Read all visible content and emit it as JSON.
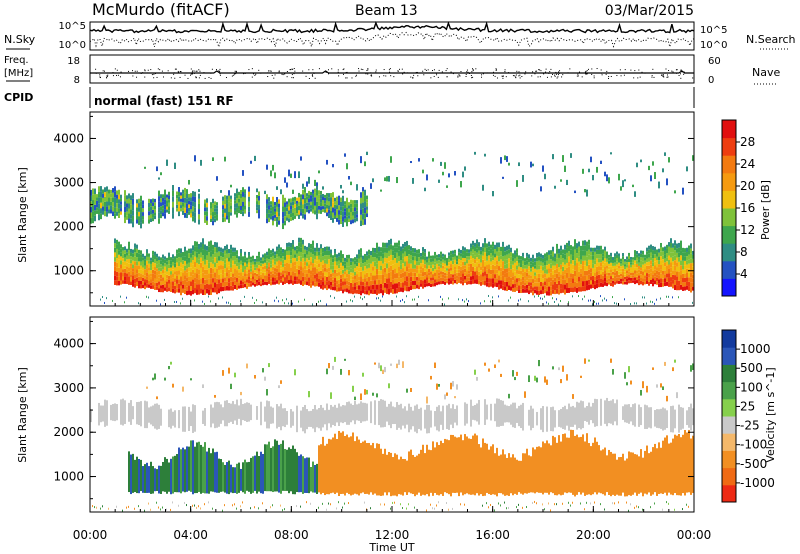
{
  "header": {
    "station": "McMurdo (fitACF)",
    "beam": "Beam 13",
    "date": "03/Mar/2015"
  },
  "noise_panel": {
    "left_label": "N.Sky",
    "right_label": "N.Search",
    "left_ticks": [
      "10^5",
      "10^0"
    ],
    "right_ticks": [
      "10^5",
      "10^0"
    ],
    "right_legend_line": "dotted"
  },
  "freq_panel": {
    "left_label_1": "Freq.",
    "left_label_2": "[MHz]",
    "left_ticks": [
      "18",
      "8"
    ],
    "right_label": "Nave",
    "right_ticks": [
      "60",
      "0"
    ],
    "right_legend_line": "dotted"
  },
  "cpid": {
    "label": "CPID",
    "mode": "normal (fast) 151 RF"
  },
  "x_axis": {
    "label": "Time UT",
    "ticks": [
      "00:00",
      "04:00",
      "08:00",
      "12:00",
      "16:00",
      "20:00",
      "00:00"
    ],
    "range_hours": [
      0,
      24
    ]
  },
  "colors": {
    "power": [
      "#1414ff",
      "#2452c2",
      "#2f8d83",
      "#3ea64d",
      "#7fc23a",
      "#f0c010",
      "#f59a10",
      "#f37a10",
      "#ee3d10",
      "#e10f0f"
    ],
    "velocity": [
      "#123a9e",
      "#2b56b8",
      "#2d7f3a",
      "#4aa14a",
      "#86d04c",
      "#c9c9c9",
      "#f4b86a",
      "#f28f22",
      "#f06a14",
      "#ee2a14"
    ]
  },
  "chart_data": [
    {
      "type": "heatmap",
      "name": "power",
      "ylabel": "Slant Range [km]",
      "ylim": [
        200,
        4600
      ],
      "yticks": [
        1000,
        2000,
        3000,
        4000
      ],
      "xlim_hours": [
        0,
        24
      ],
      "colorbar": {
        "label": "Power [dB]",
        "ticks": [
          "4",
          "8",
          "12",
          "16",
          "20",
          "24",
          "28"
        ],
        "range": [
          0,
          32
        ]
      },
      "features": [
        {
          "region": "lower scatter band",
          "x_hours": [
            0.0,
            24.0
          ],
          "range_km": [
            550,
            1500
          ],
          "peak_power_db": 30
        },
        {
          "region": "upper scatter band",
          "x_hours": [
            0.0,
            11.0
          ],
          "range_km": [
            2050,
            2850
          ],
          "peak_power_db": 14
        },
        {
          "region": "sparse high returns",
          "x_hours": [
            2.0,
            24.0
          ],
          "range_km": [
            2800,
            3700
          ],
          "peak_power_db": 8
        }
      ]
    },
    {
      "type": "heatmap",
      "name": "velocity",
      "ylabel": "Slant Range [km]",
      "ylim": [
        200,
        4600
      ],
      "yticks": [
        1000,
        2000,
        3000,
        4000
      ],
      "xlim_hours": [
        0,
        24
      ],
      "colorbar": {
        "label": "Velocity [m s^-1]",
        "ticks": [
          "1000",
          "500",
          "100",
          "25",
          "-25",
          "-100",
          "-500",
          "-1000"
        ],
        "range": [
          -1250,
          1250
        ]
      },
      "features": [
        {
          "region": "positive velocity band",
          "x_hours": [
            1.5,
            9.0
          ],
          "range_km": [
            500,
            1800
          ],
          "velocity_ms": 250
        },
        {
          "region": "negative velocity band",
          "x_hours": [
            9.0,
            24.0
          ],
          "range_km": [
            550,
            1800
          ],
          "velocity_ms": -150
        },
        {
          "region": "ground scatter band",
          "x_hours": [
            0.0,
            24.0
          ],
          "range_km": [
            2050,
            2700
          ],
          "velocity_ms": 0
        }
      ]
    }
  ]
}
